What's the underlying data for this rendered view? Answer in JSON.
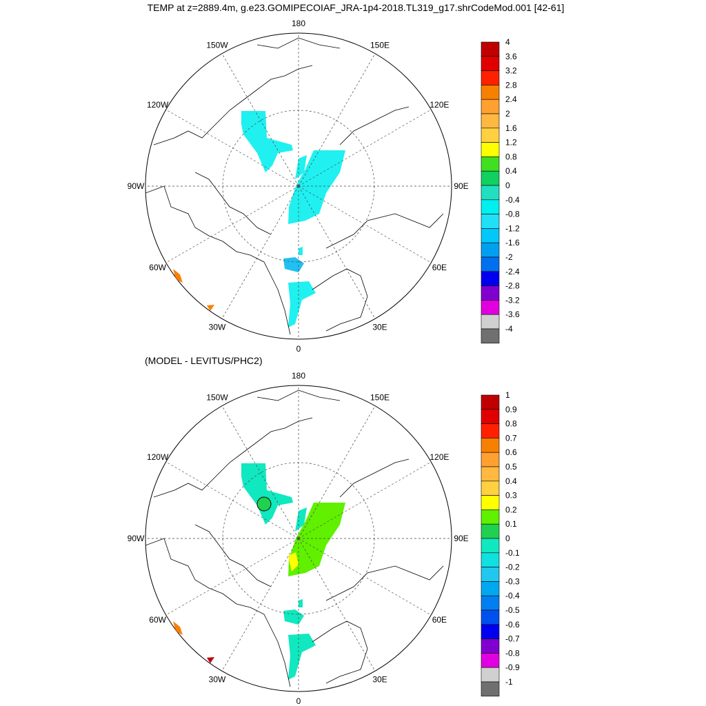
{
  "title": "TEMP at z=2889.4m, g.e23.GOMIPECOIAF_JRA-1p4-2018.TL319_g17.shrCodeMod.001 [42-61]",
  "top_map": {
    "lon_labels": [
      "180",
      "150E",
      "120E",
      "90E",
      "60E",
      "30E",
      "0",
      "30W",
      "60W",
      "90W",
      "120W",
      "150W"
    ],
    "colorbar": {
      "labels": [
        "4",
        "3.6",
        "3.2",
        "2.8",
        "2.4",
        "2",
        "1.6",
        "1.2",
        "0.8",
        "0.4",
        "0",
        "-0.4",
        "-0.8",
        "-1.2",
        "-1.6",
        "-2",
        "-2.4",
        "-2.8",
        "-3.2",
        "-3.6",
        "-4"
      ],
      "colors": [
        "#c00000",
        "#e00000",
        "#ff2000",
        "#f88000",
        "#ffa030",
        "#ffb840",
        "#ffd040",
        "#ffff00",
        "#40e020",
        "#10d060",
        "#20e0c0",
        "#00f0f0",
        "#20e0f8",
        "#00c8f8",
        "#00a0f0",
        "#0070f0",
        "#0000f0",
        "#8000d0",
        "#e000e0",
        "#d0d0d0",
        "#707070"
      ]
    }
  },
  "bottom_map": {
    "subtitle": "(MODEL - LEVITUS/PHC2)",
    "lon_labels": [
      "180",
      "150E",
      "120E",
      "90E",
      "60E",
      "30E",
      "0",
      "30W",
      "60W",
      "90W",
      "120W",
      "150W"
    ],
    "colorbar": {
      "labels": [
        "1",
        "0.9",
        "0.8",
        "0.7",
        "0.6",
        "0.5",
        "0.4",
        "0.3",
        "0.2",
        "0.1",
        "0",
        "-0.1",
        "-0.2",
        "-0.3",
        "-0.4",
        "-0.5",
        "-0.6",
        "-0.7",
        "-0.8",
        "-0.9",
        "-1"
      ],
      "colors": [
        "#c00000",
        "#e00000",
        "#ff2000",
        "#f88000",
        "#ffa030",
        "#ffb840",
        "#ffd040",
        "#ffff00",
        "#60f000",
        "#20d050",
        "#10e8c0",
        "#10e0e0",
        "#20c8f0",
        "#00a8f0",
        "#0080f0",
        "#0050f0",
        "#0000f0",
        "#8000d0",
        "#e000e0",
        "#d0d0d0",
        "#707070"
      ]
    }
  }
}
